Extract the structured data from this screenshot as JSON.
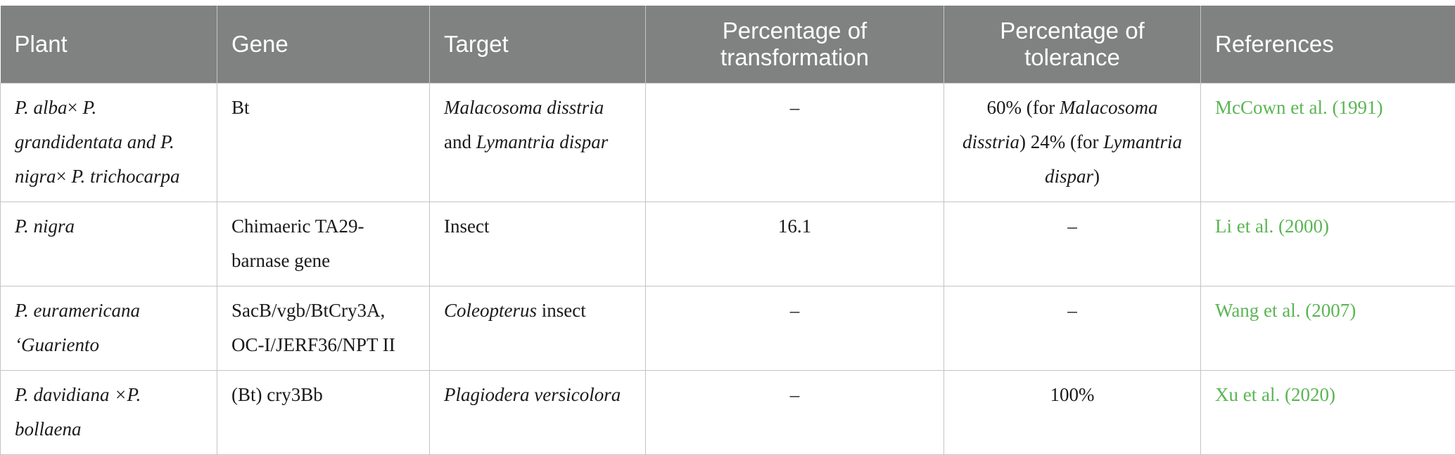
{
  "table": {
    "headers": {
      "plant": "Plant",
      "gene": "Gene",
      "target": "Target",
      "transformation_line1": "Percentage of",
      "transformation_line2": "transformation",
      "tolerance_line1": "Percentage of",
      "tolerance_line2": "tolerance",
      "references": "References"
    },
    "rows": [
      {
        "plant": [
          {
            "t": "P. alba",
            "i": true
          },
          {
            "t": "× ",
            "i": false
          },
          {
            "t": "P. grandidentata",
            "i": true
          },
          {
            "t": " and ",
            "i": true
          },
          {
            "t": "P. nigra",
            "i": true
          },
          {
            "t": "× ",
            "i": false
          },
          {
            "t": "P. trichocarpa",
            "i": true
          }
        ],
        "gene": [
          {
            "t": "Bt",
            "i": false
          }
        ],
        "target": [
          {
            "t": "Malacosoma disstria",
            "i": true
          },
          {
            "t": " and ",
            "i": false
          },
          {
            "t": "Lymantria dispar",
            "i": true
          }
        ],
        "transformation": "–",
        "tolerance": [
          {
            "t": "60% (for ",
            "i": false
          },
          {
            "t": "Malacosoma disstria",
            "i": true
          },
          {
            "t": ") 24% (for ",
            "i": false
          },
          {
            "t": "Lymantria dispar",
            "i": true
          },
          {
            "t": ")",
            "i": false
          }
        ],
        "reference": "McCown et al. (1991)"
      },
      {
        "plant": [
          {
            "t": "P. nigra",
            "i": true
          }
        ],
        "gene": [
          {
            "t": "Chimaeric TA29-barnase gene",
            "i": false
          }
        ],
        "target": [
          {
            "t": "Insect",
            "i": false
          }
        ],
        "transformation": "16.1",
        "tolerance": [
          {
            "t": "–",
            "i": false
          }
        ],
        "reference": "Li et al. (2000)"
      },
      {
        "plant": [
          {
            "t": "P. euramericana ‘Guariento",
            "i": true
          }
        ],
        "gene": [
          {
            "t": "SacB/vgb/BtCry3A, OC-I/JERF36/NPT II",
            "i": false
          }
        ],
        "target": [
          {
            "t": "Coleopterus",
            "i": true
          },
          {
            "t": " insect",
            "i": false
          }
        ],
        "transformation": "–",
        "tolerance": [
          {
            "t": "–",
            "i": false
          }
        ],
        "reference": "Wang et al. (2007)"
      },
      {
        "plant": [
          {
            "t": "P. davidiana ×P. bollaena",
            "i": true
          }
        ],
        "gene": [
          {
            "t": "(Bt) cry3Bb",
            "i": false
          }
        ],
        "target": [
          {
            "t": "Plagiodera versicolora",
            "i": true
          }
        ],
        "transformation": "–",
        "tolerance": [
          {
            "t": "100%",
            "i": false
          }
        ],
        "reference": "Xu et al. (2020)"
      }
    ]
  }
}
